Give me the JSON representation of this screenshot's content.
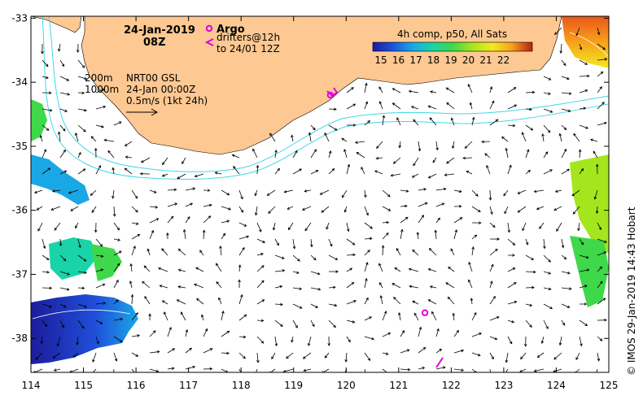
{
  "title": {
    "date": "24-Jan-2019",
    "time": "08Z"
  },
  "legend": {
    "argo_label": "Argo",
    "drifters_label": "drifters@12h",
    "drifters_range": "to 24/01 12Z",
    "argo_color": "#e000e0"
  },
  "colorbar": {
    "title": "4h comp, p50, All Sats",
    "ticks": [
      "15",
      "16",
      "17",
      "18",
      "19",
      "20",
      "21",
      "22"
    ],
    "colors": [
      "#1c1c9c",
      "#1f4fd9",
      "#1aa7e6",
      "#19d4a8",
      "#3ed84a",
      "#a4e61d",
      "#f3ea1e",
      "#f7a21c",
      "#e9571a",
      "#b81e14"
    ]
  },
  "info": {
    "contour_200": "200m",
    "contour_1000": "1000m",
    "product": "NRT00 GSL",
    "valid": "24-Jan 00:00Z",
    "scale": "0.5m/s (1kt 24h)"
  },
  "axes": {
    "x_ticks": [
      "114",
      "115",
      "116",
      "117",
      "118",
      "119",
      "120",
      "121",
      "122",
      "123",
      "124",
      "125"
    ],
    "y_ticks": [
      "-33",
      "-34",
      "-35",
      "-36",
      "-37",
      "-38"
    ]
  },
  "credit": "© IMOS 29-Jan-2019 14:43 Hobart",
  "colors": {
    "land": "#fdc891",
    "isobath": "#40d8e8",
    "frame": "#000000"
  },
  "argo_floats": [
    {
      "lon": 121.5,
      "lat": -37.6
    },
    {
      "lon": 119.7,
      "lat": -34.2
    }
  ]
}
